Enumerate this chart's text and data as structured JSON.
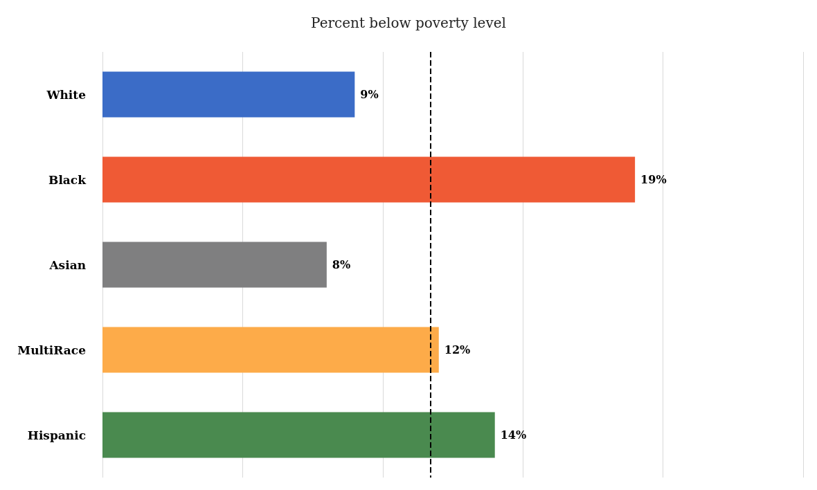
{
  "chart_data": {
    "type": "bar",
    "orientation": "horizontal",
    "title": "Percent below poverty level",
    "categories": [
      "White",
      "Black",
      "Asian",
      "MultiRace",
      "Hispanic"
    ],
    "values": [
      9,
      19,
      8,
      12,
      14
    ],
    "colors": [
      "#3b6cc7",
      "#ef5a35",
      "#7f7f80",
      "#fdab49",
      "#4a8a4f"
    ],
    "value_labels": [
      "9%",
      "19%",
      "8%",
      "12%",
      "14%"
    ],
    "xlim": [
      0,
      25
    ],
    "xticks": [
      {
        "value": 0,
        "label": null
      },
      {
        "value": 5,
        "label": null
      },
      {
        "value": 10,
        "label": null
      },
      {
        "value": 15,
        "label": null
      },
      {
        "value": 20,
        "label": null
      },
      {
        "value": 25,
        "label": null
      }
    ],
    "tick_labels": "y",
    "grid": "x",
    "ref_lines": [
      {
        "axis": "x",
        "value": 11.7,
        "color": "#000000",
        "line_style": "dashed"
      }
    ]
  }
}
